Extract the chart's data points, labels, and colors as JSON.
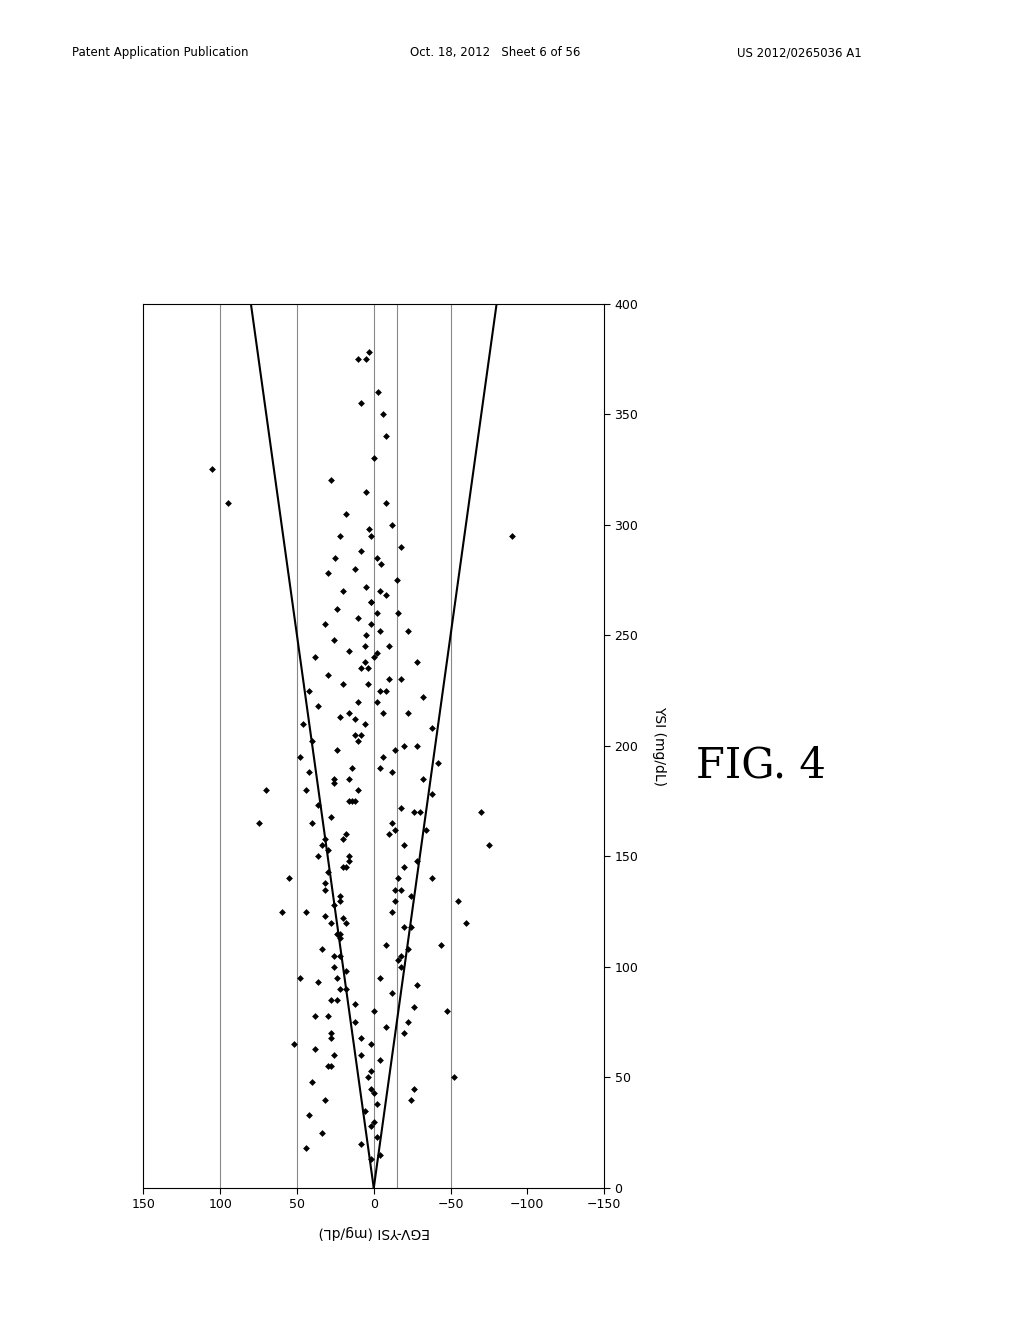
{
  "title": "",
  "xlabel": "EGV-YSI (mg/dL)",
  "ylabel": "YSI (mg/dL)",
  "fig_label": "FIG. 4",
  "x_lim": [
    150,
    -150
  ],
  "y_lim": [
    0,
    400
  ],
  "x_ticks": [
    150,
    100,
    50,
    0,
    -50,
    -100,
    -150
  ],
  "y_ticks": [
    0,
    50,
    100,
    150,
    200,
    250,
    300,
    350,
    400
  ],
  "vertical_lines_x": [
    100,
    50,
    0,
    -15,
    -50
  ],
  "vline_color": "#888888",
  "scatter_color": "#000000",
  "line_color": "#000000",
  "background_color": "#ffffff",
  "line_slope": 0.2,
  "scatter_points": [
    [
      5,
      375
    ],
    [
      -3,
      360
    ],
    [
      8,
      355
    ],
    [
      -8,
      340
    ],
    [
      28,
      320
    ],
    [
      5,
      315
    ],
    [
      -8,
      310
    ],
    [
      18,
      305
    ],
    [
      -12,
      300
    ],
    [
      3,
      298
    ],
    [
      22,
      295
    ],
    [
      -18,
      290
    ],
    [
      8,
      288
    ],
    [
      25,
      285
    ],
    [
      -5,
      282
    ],
    [
      12,
      280
    ],
    [
      30,
      278
    ],
    [
      -15,
      275
    ],
    [
      5,
      272
    ],
    [
      20,
      270
    ],
    [
      -8,
      268
    ],
    [
      2,
      265
    ],
    [
      24,
      262
    ],
    [
      -16,
      260
    ],
    [
      10,
      258
    ],
    [
      32,
      255
    ],
    [
      -22,
      252
    ],
    [
      5,
      250
    ],
    [
      26,
      248
    ],
    [
      -10,
      245
    ],
    [
      16,
      243
    ],
    [
      38,
      240
    ],
    [
      -28,
      238
    ],
    [
      8,
      235
    ],
    [
      30,
      232
    ],
    [
      -18,
      230
    ],
    [
      20,
      228
    ],
    [
      42,
      225
    ],
    [
      -32,
      222
    ],
    [
      10,
      220
    ],
    [
      36,
      218
    ],
    [
      -22,
      215
    ],
    [
      22,
      213
    ],
    [
      46,
      210
    ],
    [
      -38,
      208
    ],
    [
      12,
      205
    ],
    [
      40,
      202
    ],
    [
      -28,
      200
    ],
    [
      24,
      198
    ],
    [
      48,
      195
    ],
    [
      -42,
      192
    ],
    [
      14,
      190
    ],
    [
      42,
      188
    ],
    [
      -32,
      185
    ],
    [
      26,
      183
    ],
    [
      44,
      180
    ],
    [
      -38,
      178
    ],
    [
      16,
      175
    ],
    [
      36,
      173
    ],
    [
      -26,
      170
    ],
    [
      28,
      168
    ],
    [
      40,
      165
    ],
    [
      -34,
      162
    ],
    [
      18,
      160
    ],
    [
      32,
      158
    ],
    [
      -20,
      155
    ],
    [
      30,
      153
    ],
    [
      36,
      150
    ],
    [
      -28,
      148
    ],
    [
      20,
      145
    ],
    [
      30,
      143
    ],
    [
      -16,
      140
    ],
    [
      32,
      138
    ],
    [
      32,
      135
    ],
    [
      -24,
      132
    ],
    [
      22,
      130
    ],
    [
      26,
      128
    ],
    [
      -12,
      125
    ],
    [
      32,
      123
    ],
    [
      28,
      120
    ],
    [
      -20,
      118
    ],
    [
      24,
      115
    ],
    [
      22,
      113
    ],
    [
      -8,
      110
    ],
    [
      34,
      108
    ],
    [
      22,
      105
    ],
    [
      -16,
      103
    ],
    [
      26,
      100
    ],
    [
      18,
      98
    ],
    [
      -4,
      95
    ],
    [
      36,
      93
    ],
    [
      18,
      90
    ],
    [
      -12,
      88
    ],
    [
      28,
      85
    ],
    [
      12,
      83
    ],
    [
      0,
      80
    ],
    [
      38,
      78
    ],
    [
      12,
      75
    ],
    [
      -8,
      73
    ],
    [
      28,
      70
    ],
    [
      8,
      68
    ],
    [
      2,
      65
    ],
    [
      38,
      63
    ],
    [
      8,
      60
    ],
    [
      -4,
      58
    ],
    [
      30,
      55
    ],
    [
      2,
      53
    ],
    [
      4,
      50
    ],
    [
      40,
      48
    ],
    [
      2,
      45
    ],
    [
      0,
      43
    ],
    [
      32,
      40
    ],
    [
      -2,
      38
    ],
    [
      6,
      35
    ],
    [
      42,
      33
    ],
    [
      0,
      30
    ],
    [
      2,
      28
    ],
    [
      34,
      25
    ],
    [
      -2,
      23
    ],
    [
      8,
      20
    ],
    [
      44,
      18
    ],
    [
      -4,
      15
    ],
    [
      2,
      13
    ],
    [
      -2,
      260
    ],
    [
      6,
      245
    ],
    [
      -10,
      230
    ],
    [
      16,
      215
    ],
    [
      -20,
      200
    ],
    [
      26,
      185
    ],
    [
      -30,
      170
    ],
    [
      34,
      155
    ],
    [
      -38,
      140
    ],
    [
      44,
      125
    ],
    [
      -44,
      110
    ],
    [
      48,
      95
    ],
    [
      -48,
      80
    ],
    [
      52,
      65
    ],
    [
      -52,
      50
    ],
    [
      0,
      240
    ],
    [
      -4,
      225
    ],
    [
      6,
      210
    ],
    [
      -6,
      195
    ],
    [
      10,
      180
    ],
    [
      -12,
      165
    ],
    [
      16,
      150
    ],
    [
      -14,
      135
    ],
    [
      18,
      120
    ],
    [
      -18,
      105
    ],
    [
      22,
      90
    ],
    [
      -22,
      75
    ],
    [
      26,
      60
    ],
    [
      -26,
      45
    ],
    [
      4,
      235
    ],
    [
      -2,
      220
    ],
    [
      8,
      205
    ],
    [
      -4,
      190
    ],
    [
      12,
      175
    ],
    [
      -10,
      160
    ],
    [
      18,
      145
    ],
    [
      -14,
      130
    ],
    [
      22,
      115
    ],
    [
      -18,
      100
    ],
    [
      24,
      85
    ],
    [
      -20,
      70
    ],
    [
      28,
      55
    ],
    [
      -24,
      40
    ],
    [
      2,
      255
    ],
    [
      -2,
      242
    ],
    [
      4,
      228
    ],
    [
      -6,
      215
    ],
    [
      10,
      202
    ],
    [
      -12,
      188
    ],
    [
      14,
      175
    ],
    [
      -14,
      162
    ],
    [
      16,
      148
    ],
    [
      -18,
      135
    ],
    [
      20,
      122
    ],
    [
      -22,
      108
    ],
    [
      24,
      95
    ],
    [
      -26,
      82
    ],
    [
      28,
      68
    ],
    [
      2,
      265
    ],
    [
      -4,
      252
    ],
    [
      6,
      238
    ],
    [
      -8,
      225
    ],
    [
      12,
      212
    ],
    [
      -14,
      198
    ],
    [
      16,
      185
    ],
    [
      -18,
      172
    ],
    [
      20,
      158
    ],
    [
      -20,
      145
    ],
    [
      22,
      132
    ],
    [
      -24,
      118
    ],
    [
      26,
      105
    ],
    [
      -28,
      92
    ],
    [
      30,
      78
    ],
    [
      0,
      330
    ],
    [
      -2,
      285
    ],
    [
      2,
      295
    ],
    [
      -4,
      270
    ],
    [
      70,
      180
    ],
    [
      75,
      165
    ],
    [
      -70,
      170
    ],
    [
      -75,
      155
    ],
    [
      95,
      310
    ],
    [
      -90,
      295
    ],
    [
      55,
      140
    ],
    [
      -55,
      130
    ],
    [
      60,
      125
    ],
    [
      -60,
      120
    ],
    [
      10,
      375
    ],
    [
      -6,
      350
    ],
    [
      105,
      325
    ],
    [
      3,
      378
    ]
  ],
  "header_left": "Patent Application Publication",
  "header_mid": "Oct. 18, 2012   Sheet 6 of 56",
  "header_right": "US 2012/0265036 A1"
}
